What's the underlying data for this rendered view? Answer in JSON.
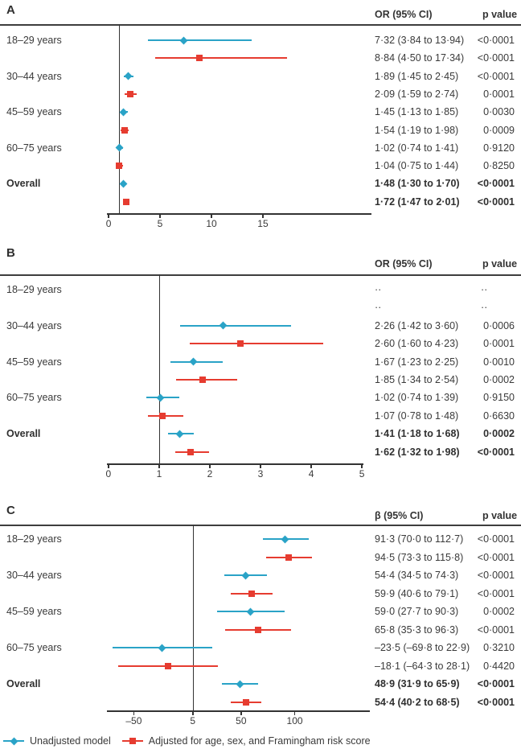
{
  "figure": {
    "colors": {
      "unadjusted": "#2aa3c7",
      "adjusted": "#e63c30",
      "text": "#3a3a3a",
      "line": "#333333"
    },
    "legend": [
      {
        "marker": "diamond",
        "series": "unadjusted",
        "label": "Unadjusted model"
      },
      {
        "marker": "square",
        "series": "adjusted",
        "label": "Adjusted for age, sex, and Framingham risk score"
      }
    ]
  },
  "chart_data": [
    {
      "type": "forest",
      "panel": "A",
      "effect_header": "OR (95% CI)",
      "p_header": "p value",
      "ref_value": 1,
      "x_ticks": [
        {
          "label": "0",
          "value": 0
        },
        {
          "label": "5",
          "value": 5
        },
        {
          "label": "10",
          "value": 10
        },
        {
          "label": "15",
          "value": 15
        }
      ],
      "x_range": [
        -0.16,
        25.55
      ],
      "groups": [
        "18–29 years",
        "30–44 years",
        "45–59 years",
        "60–75 years",
        "Overall"
      ],
      "rows": [
        {
          "group": "18–29 years",
          "series": "unadjusted",
          "est": 7.32,
          "lo": 3.84,
          "hi": 13.94,
          "text": "7·32 (3·84 to 13·94)",
          "p": "<0·0001",
          "bold": false
        },
        {
          "group": "18–29 years",
          "series": "adjusted",
          "est": 8.84,
          "lo": 4.5,
          "hi": 17.34,
          "text": "8·84 (4·50 to 17·34)",
          "p": "<0·0001",
          "bold": false
        },
        {
          "group": "30–44 years",
          "series": "unadjusted",
          "est": 1.89,
          "lo": 1.45,
          "hi": 2.45,
          "text": "1·89 (1·45 to 2·45)",
          "p": "<0·0001",
          "bold": false
        },
        {
          "group": "30–44 years",
          "series": "adjusted",
          "est": 2.09,
          "lo": 1.59,
          "hi": 2.74,
          "text": "2·09 (1·59 to 2·74)",
          "p": "0·0001",
          "bold": false
        },
        {
          "group": "45–59 years",
          "series": "unadjusted",
          "est": 1.45,
          "lo": 1.13,
          "hi": 1.85,
          "text": "1·45 (1·13 to 1·85)",
          "p": "0·0030",
          "bold": false
        },
        {
          "group": "45–59 years",
          "series": "adjusted",
          "est": 1.54,
          "lo": 1.19,
          "hi": 1.98,
          "text": "1·54 (1·19 to 1·98)",
          "p": "0·0009",
          "bold": false
        },
        {
          "group": "60–75 years",
          "series": "unadjusted",
          "est": 1.02,
          "lo": 0.74,
          "hi": 1.41,
          "text": "1·02 (0·74 to 1·41)",
          "p": "0·9120",
          "bold": false
        },
        {
          "group": "60–75 years",
          "series": "adjusted",
          "est": 1.04,
          "lo": 0.75,
          "hi": 1.44,
          "text": "1·04 (0·75 to 1·44)",
          "p": "0·8250",
          "bold": false
        },
        {
          "group": "Overall",
          "series": "unadjusted",
          "est": 1.48,
          "lo": 1.3,
          "hi": 1.7,
          "text": "1·48 (1·30 to 1·70)",
          "p": "<0·0001",
          "bold": true
        },
        {
          "group": "Overall",
          "series": "adjusted",
          "est": 1.72,
          "lo": 1.47,
          "hi": 2.01,
          "text": "1·72 (1·47 to 2·01)",
          "p": "<0·0001",
          "bold": true
        }
      ]
    },
    {
      "type": "forest",
      "panel": "B",
      "effect_header": "OR (95% CI)",
      "p_header": "p value",
      "ref_value": 1,
      "x_ticks": [
        {
          "label": "0",
          "value": 0
        },
        {
          "label": "1",
          "value": 1
        },
        {
          "label": "2",
          "value": 2
        },
        {
          "label": "3",
          "value": 3
        },
        {
          "label": "4",
          "value": 4
        },
        {
          "label": "5",
          "value": 5
        }
      ],
      "x_range": [
        -0.03,
        5.03
      ],
      "groups": [
        "18–29 years",
        "30–44 years",
        "45–59 years",
        "60–75 years",
        "Overall"
      ],
      "rows": [
        {
          "group": "18–29 years",
          "series": "unadjusted",
          "est": null,
          "lo": null,
          "hi": null,
          "text": "··",
          "p": "··",
          "bold": false
        },
        {
          "group": "18–29 years",
          "series": "adjusted",
          "est": null,
          "lo": null,
          "hi": null,
          "text": "··",
          "p": "··",
          "bold": false
        },
        {
          "group": "30–44 years",
          "series": "unadjusted",
          "est": 2.26,
          "lo": 1.42,
          "hi": 3.6,
          "text": "2·26 (1·42 to 3·60)",
          "p": "0·0006",
          "bold": false
        },
        {
          "group": "30–44 years",
          "series": "adjusted",
          "est": 2.6,
          "lo": 1.6,
          "hi": 4.23,
          "text": "2·60 (1·60 to 4·23)",
          "p": "0·0001",
          "bold": false
        },
        {
          "group": "45–59 years",
          "series": "unadjusted",
          "est": 1.67,
          "lo": 1.23,
          "hi": 2.25,
          "text": "1·67 (1·23 to 2·25)",
          "p": "0·0010",
          "bold": false
        },
        {
          "group": "45–59 years",
          "series": "adjusted",
          "est": 1.85,
          "lo": 1.34,
          "hi": 2.54,
          "text": "1·85 (1·34 to 2·54)",
          "p": "0·0002",
          "bold": false
        },
        {
          "group": "60–75 years",
          "series": "unadjusted",
          "est": 1.02,
          "lo": 0.74,
          "hi": 1.39,
          "text": "1·02 (0·74 to 1·39)",
          "p": "0·9150",
          "bold": false
        },
        {
          "group": "60–75 years",
          "series": "adjusted",
          "est": 1.07,
          "lo": 0.78,
          "hi": 1.48,
          "text": "1·07 (0·78 to 1·48)",
          "p": "0·6630",
          "bold": false
        },
        {
          "group": "Overall",
          "series": "unadjusted",
          "est": 1.41,
          "lo": 1.18,
          "hi": 1.68,
          "text": "1·41 (1·18 to 1·68)",
          "p": "0·0002",
          "bold": true
        },
        {
          "group": "Overall",
          "series": "adjusted",
          "est": 1.62,
          "lo": 1.32,
          "hi": 1.98,
          "text": "1·62 (1·32 to 1·98)",
          "p": "<0·0001",
          "bold": true
        }
      ]
    },
    {
      "type": "forest",
      "panel": "C",
      "effect_header": "β (95% CI)",
      "p_header": "p value",
      "ref_value": 5,
      "x_ticks": [
        {
          "label": "–50",
          "value": -50
        },
        {
          "label": "5",
          "value": 5
        },
        {
          "label": "50",
          "value": 50
        },
        {
          "label": "100",
          "value": 100
        }
      ],
      "x_range": [
        -75,
        170
      ],
      "groups": [
        "18–29 years",
        "30–44 years",
        "45–59 years",
        "60–75 years",
        "Overall"
      ],
      "rows": [
        {
          "group": "18–29 years",
          "series": "unadjusted",
          "est": 91.3,
          "lo": 70.0,
          "hi": 112.7,
          "text": "91·3 (70·0 to 112·7)",
          "p": "<0·0001",
          "bold": false
        },
        {
          "group": "18–29 years",
          "series": "adjusted",
          "est": 94.5,
          "lo": 73.3,
          "hi": 115.8,
          "text": "94·5 (73·3 to 115·8)",
          "p": "<0·0001",
          "bold": false
        },
        {
          "group": "30–44 years",
          "series": "unadjusted",
          "est": 54.4,
          "lo": 34.5,
          "hi": 74.3,
          "text": "54·4 (34·5 to 74·3)",
          "p": "<0·0001",
          "bold": false
        },
        {
          "group": "30–44 years",
          "series": "adjusted",
          "est": 59.9,
          "lo": 40.6,
          "hi": 79.1,
          "text": "59·9 (40·6 to 79·1)",
          "p": "<0·0001",
          "bold": false
        },
        {
          "group": "45–59 years",
          "series": "unadjusted",
          "est": 59.0,
          "lo": 27.7,
          "hi": 90.3,
          "text": "59·0 (27·7 to 90·3)",
          "p": "0·0002",
          "bold": false
        },
        {
          "group": "45–59 years",
          "series": "adjusted",
          "est": 65.8,
          "lo": 35.3,
          "hi": 96.3,
          "text": "65·8 (35·3 to 96·3)",
          "p": "<0·0001",
          "bold": false
        },
        {
          "group": "60–75 years",
          "series": "unadjusted",
          "est": -23.5,
          "lo": -69.8,
          "hi": 22.9,
          "text": "–23·5 (–69·8 to 22·9)",
          "p": "0·3210",
          "bold": false
        },
        {
          "group": "60–75 years",
          "series": "adjusted",
          "est": -18.1,
          "lo": -64.3,
          "hi": 28.1,
          "text": "–18·1 (–64·3 to 28·1)",
          "p": "0·4420",
          "bold": false
        },
        {
          "group": "Overall",
          "series": "unadjusted",
          "est": 48.9,
          "lo": 31.9,
          "hi": 65.9,
          "text": "48·9 (31·9 to 65·9)",
          "p": "<0·0001",
          "bold": true
        },
        {
          "group": "Overall",
          "series": "adjusted",
          "est": 54.4,
          "lo": 40.2,
          "hi": 68.5,
          "text": "54·4 (40·2 to 68·5)",
          "p": "<0·0001",
          "bold": true
        }
      ]
    }
  ]
}
